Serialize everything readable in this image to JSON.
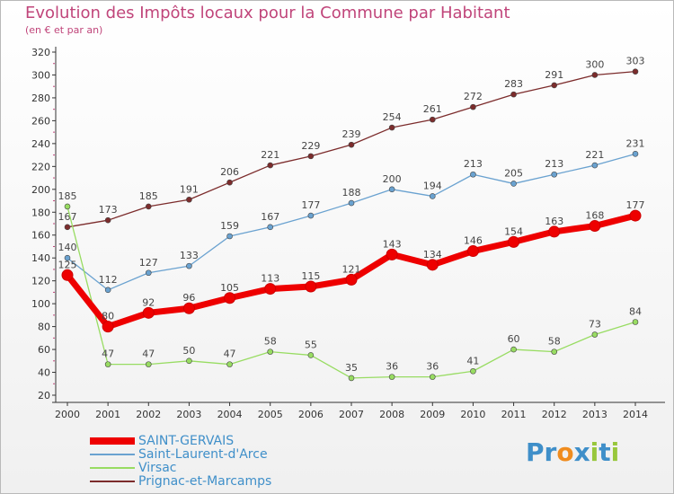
{
  "chart_data": {
    "type": "line",
    "title": "Evolution des Impôts locaux pour la Commune par Habitant",
    "subtitle": "(en € et par an)",
    "x": [
      "2000",
      "2001",
      "2002",
      "2003",
      "2004",
      "2005",
      "2006",
      "2007",
      "2008",
      "2009",
      "2010",
      "2011",
      "2012",
      "2013",
      "2014"
    ],
    "yticks": [
      20,
      40,
      60,
      80,
      100,
      120,
      140,
      160,
      180,
      200,
      220,
      240,
      260,
      280,
      300,
      320
    ],
    "ylim": [
      20,
      320
    ],
    "grid": false,
    "legend_position": "bottom-left",
    "series": [
      {
        "name": "SAINT-GERVAIS",
        "color": "#ee0000",
        "values": [
          125,
          80,
          92,
          96,
          105,
          113,
          115,
          121,
          143,
          134,
          146,
          154,
          163,
          168,
          177
        ]
      },
      {
        "name": "Saint-Laurent-d'Arce",
        "color": "#6aa2d0",
        "values": [
          140,
          112,
          127,
          133,
          159,
          167,
          177,
          188,
          200,
          194,
          213,
          205,
          213,
          221,
          231
        ]
      },
      {
        "name": "Virsac",
        "color": "#98dc62",
        "values": [
          185,
          47,
          47,
          50,
          47,
          58,
          55,
          35,
          36,
          36,
          41,
          60,
          58,
          73,
          84
        ]
      },
      {
        "name": "Prignac-et-Marcamps",
        "color": "#7c2c2c",
        "values": [
          167,
          173,
          185,
          191,
          206,
          221,
          229,
          239,
          254,
          261,
          272,
          283,
          291,
          300,
          303
        ]
      }
    ]
  },
  "logo": {
    "text": "Proxiti",
    "letters": [
      "P",
      "r",
      "o",
      "x",
      "i",
      "t",
      "i"
    ],
    "colors": [
      "#3f8fc9",
      "#3f8fc9",
      "#f08c1e",
      "#3f8fc9",
      "#98c73c",
      "#3f8fc9",
      "#98c73c"
    ]
  }
}
